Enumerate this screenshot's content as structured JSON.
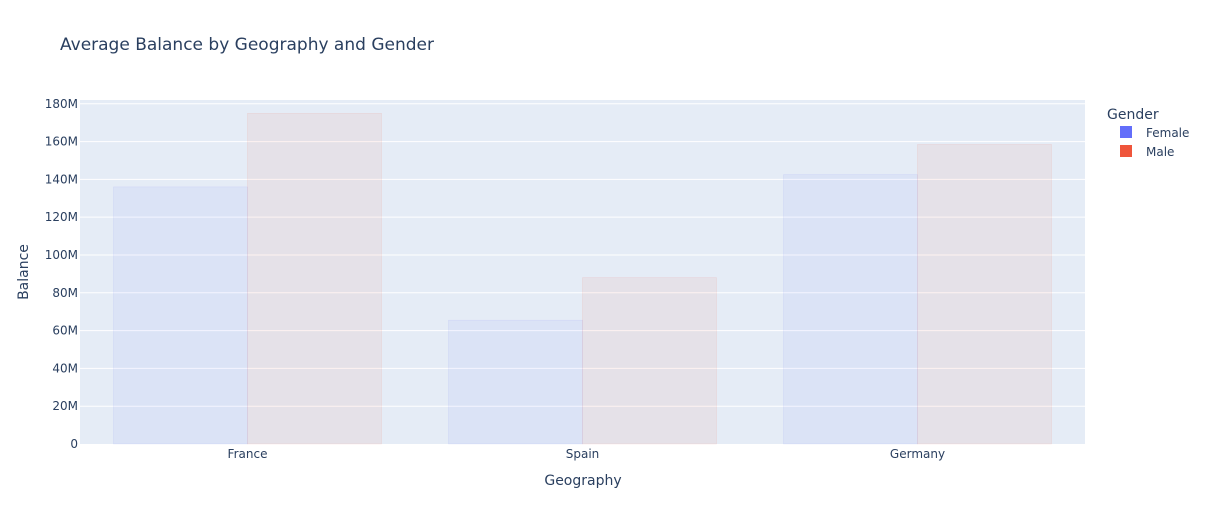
{
  "chart_data": {
    "type": "bar",
    "title": "Average Balance by Geography and Gender",
    "xlabel": "Geography",
    "ylabel": "Balance",
    "categories": [
      "France",
      "Spain",
      "Germany"
    ],
    "series": [
      {
        "name": "Female",
        "color": "#636efa",
        "values": [
          136000000,
          65500000,
          142500000
        ]
      },
      {
        "name": "Male",
        "color": "#ef553b",
        "values": [
          175000000,
          88000000,
          158500000
        ]
      }
    ],
    "ylim": [
      0,
      182000000
    ],
    "yticks": [
      {
        "value": 0,
        "label": "0"
      },
      {
        "value": 20000000,
        "label": "20M"
      },
      {
        "value": 40000000,
        "label": "40M"
      },
      {
        "value": 60000000,
        "label": "60M"
      },
      {
        "value": 80000000,
        "label": "80M"
      },
      {
        "value": 100000000,
        "label": "100M"
      },
      {
        "value": 120000000,
        "label": "120M"
      },
      {
        "value": 140000000,
        "label": "140M"
      },
      {
        "value": 160000000,
        "label": "160M"
      },
      {
        "value": 180000000,
        "label": "180M"
      }
    ],
    "legend_title": "Gender",
    "legend_position": "top-right",
    "grid": true,
    "colors": {
      "plot_background": "#e5ecf6",
      "grid": "#ffffff",
      "text": "#2a3f5f"
    }
  }
}
